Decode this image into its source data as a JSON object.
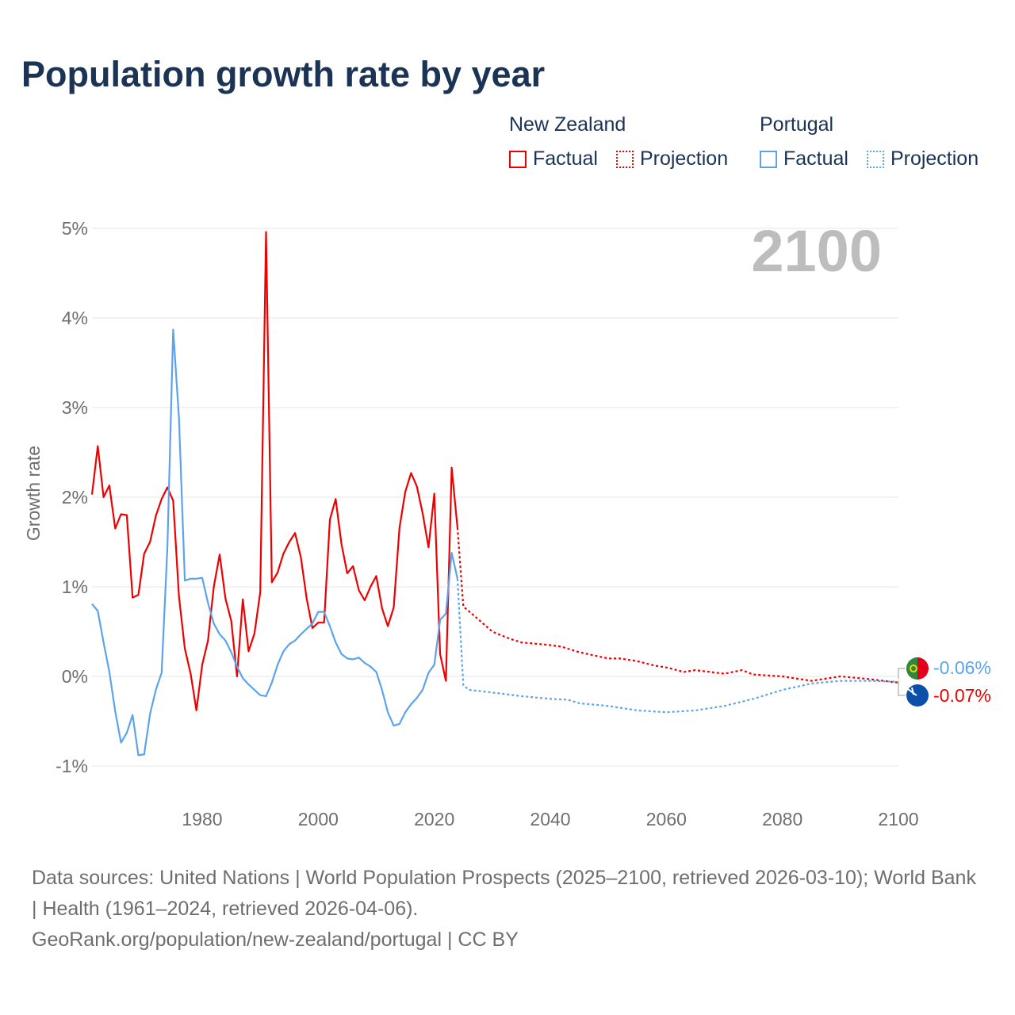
{
  "title": "Population growth rate by year",
  "legend": {
    "groups": [
      {
        "name": "New Zealand",
        "color": "#ee0000",
        "factual": "Factual",
        "projection": "Projection"
      },
      {
        "name": "Portugal",
        "color": "#5ba4ec",
        "factual": "Factual",
        "projection": "Projection"
      }
    ]
  },
  "footer": {
    "sources": "Data sources: United Nations | World Population Prospects (2025–2100, retrieved 2026-03-10); World Bank | Health (1961–2024, retrieved 2026-04-06).",
    "link": "GeoRank.org/population/new-zealand/portugal | CC BY"
  },
  "chart_data": {
    "type": "line",
    "title": "Population growth rate by year",
    "ylabel": "Growth rate",
    "xlim": [
      1961,
      2100
    ],
    "ylim": [
      -1.2,
      5
    ],
    "year_label": "2100",
    "yticks": [
      {
        "v": -1,
        "label": "-1%"
      },
      {
        "v": 0,
        "label": "0%"
      },
      {
        "v": 1,
        "label": "1%"
      },
      {
        "v": 2,
        "label": "2%"
      },
      {
        "v": 3,
        "label": "3%"
      },
      {
        "v": 4,
        "label": "4%"
      },
      {
        "v": 5,
        "label": "5%"
      }
    ],
    "xticks": [
      {
        "v": 1980,
        "label": "1980"
      },
      {
        "v": 2000,
        "label": "2000"
      },
      {
        "v": 2020,
        "label": "2020"
      },
      {
        "v": 2040,
        "label": "2040"
      },
      {
        "v": 2060,
        "label": "2060"
      },
      {
        "v": 2080,
        "label": "2080"
      },
      {
        "v": 2100,
        "label": "2100"
      }
    ],
    "series": [
      {
        "name": "New Zealand Factual",
        "color": "#ee0000",
        "dashed": false,
        "x0": 1961,
        "values": [
          2.03,
          2.57,
          2.0,
          2.13,
          1.65,
          1.81,
          1.8,
          0.88,
          0.91,
          1.37,
          1.5,
          1.79,
          1.98,
          2.11,
          1.96,
          0.89,
          0.31,
          0.03,
          -0.38,
          0.13,
          0.4,
          1.0,
          1.36,
          0.87,
          0.62,
          0.0,
          0.86,
          0.28,
          0.48,
          0.94,
          4.96,
          1.05,
          1.16,
          1.37,
          1.5,
          1.6,
          1.33,
          0.87,
          0.54,
          0.6,
          0.6,
          1.75,
          1.98,
          1.48,
          1.15,
          1.23,
          0.96,
          0.85,
          1.0,
          1.12,
          0.76,
          0.56,
          0.77,
          1.66,
          2.06,
          2.27,
          2.12,
          1.82,
          1.44,
          2.04,
          0.25,
          -0.05,
          2.33,
          1.66
        ]
      },
      {
        "name": "Portugal Factual",
        "color": "#5ba4ec",
        "dashed": false,
        "x0": 1961,
        "values": [
          0.81,
          0.73,
          0.38,
          0.05,
          -0.39,
          -0.74,
          -0.63,
          -0.43,
          -0.88,
          -0.87,
          -0.42,
          -0.15,
          0.04,
          1.44,
          3.87,
          2.88,
          1.07,
          1.09,
          1.09,
          1.1,
          0.82,
          0.59,
          0.47,
          0.4,
          0.27,
          0.11,
          -0.02,
          -0.09,
          -0.15,
          -0.21,
          -0.22,
          -0.07,
          0.13,
          0.28,
          0.36,
          0.4,
          0.47,
          0.53,
          0.59,
          0.72,
          0.72,
          0.56,
          0.38,
          0.25,
          0.2,
          0.19,
          0.21,
          0.15,
          0.11,
          0.05,
          -0.15,
          -0.4,
          -0.55,
          -0.53,
          -0.4,
          -0.31,
          -0.24,
          -0.15,
          0.04,
          0.13,
          0.63,
          0.7,
          1.38,
          1.09
        ]
      },
      {
        "name": "New Zealand Projection",
        "color": "#ee0000",
        "dashed": true,
        "x": [
          2024,
          2025,
          2027,
          2030,
          2033,
          2035,
          2040,
          2042,
          2045,
          2050,
          2052,
          2055,
          2058,
          2060,
          2063,
          2065,
          2070,
          2073,
          2075,
          2080,
          2085,
          2090,
          2095,
          2100
        ],
        "values": [
          1.66,
          0.78,
          0.67,
          0.5,
          0.42,
          0.38,
          0.35,
          0.33,
          0.27,
          0.2,
          0.2,
          0.17,
          0.12,
          0.1,
          0.05,
          0.07,
          0.03,
          0.07,
          0.02,
          0.0,
          -0.05,
          0.0,
          -0.03,
          -0.07
        ]
      },
      {
        "name": "Portugal Projection",
        "color": "#5ba4ec",
        "dashed": true,
        "x": [
          2024,
          2025,
          2026,
          2030,
          2035,
          2040,
          2043,
          2045,
          2050,
          2055,
          2060,
          2065,
          2070,
          2075,
          2080,
          2085,
          2090,
          2095,
          2100
        ],
        "values": [
          1.09,
          -0.1,
          -0.15,
          -0.18,
          -0.22,
          -0.25,
          -0.26,
          -0.3,
          -0.33,
          -0.38,
          -0.4,
          -0.38,
          -0.33,
          -0.25,
          -0.15,
          -0.08,
          -0.05,
          -0.05,
          -0.06
        ]
      }
    ],
    "end_labels": [
      {
        "country": "Portugal",
        "label": "-0.06%",
        "color": "#5ba4ec"
      },
      {
        "country": "New Zealand",
        "label": "-0.07%",
        "color": "#ee0000"
      }
    ]
  }
}
